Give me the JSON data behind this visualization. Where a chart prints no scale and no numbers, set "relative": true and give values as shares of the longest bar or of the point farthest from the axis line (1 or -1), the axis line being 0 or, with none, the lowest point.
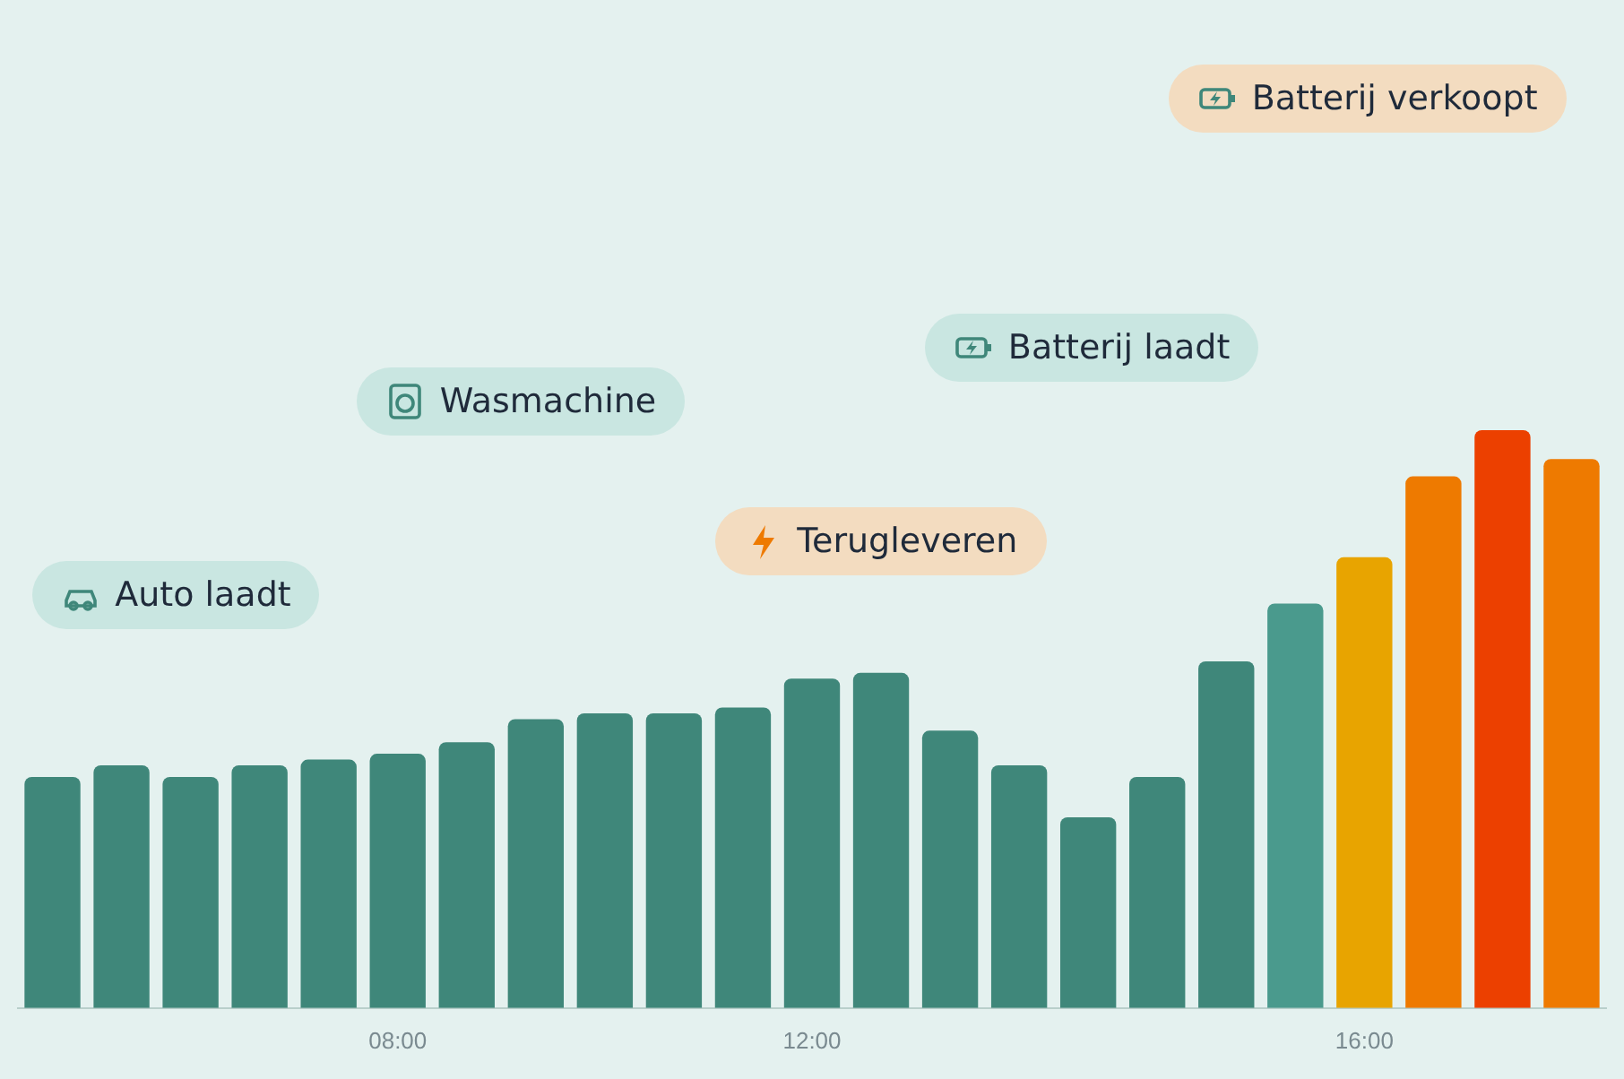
{
  "chart_data": {
    "type": "bar",
    "relative": true,
    "categories": [
      null,
      null,
      null,
      null,
      null,
      "08:00",
      null,
      null,
      null,
      null,
      null,
      "12:00",
      null,
      null,
      null,
      null,
      null,
      null,
      null,
      "16:00",
      null,
      null,
      null
    ],
    "values": [
      0.4,
      0.42,
      0.4,
      0.42,
      0.43,
      0.44,
      0.46,
      0.5,
      0.51,
      0.51,
      0.52,
      0.57,
      0.58,
      0.48,
      0.42,
      0.33,
      0.4,
      0.6,
      0.7,
      0.78,
      0.92,
      1.0,
      0.95
    ],
    "colors": [
      "#3f877a",
      "#3f877a",
      "#3f877a",
      "#3f877a",
      "#3f877a",
      "#3f877a",
      "#3f877a",
      "#3f877a",
      "#3f877a",
      "#3f877a",
      "#3f877a",
      "#3f877a",
      "#3f877a",
      "#3f877a",
      "#3f877a",
      "#3f877a",
      "#3f877a",
      "#3f877a",
      "#4a9a8d",
      "#e8a400",
      "#ee7a00",
      "#ec4000",
      "#ee7a00"
    ],
    "annotations": [
      "Auto laadt",
      "Wasmachine",
      "Terugleveren",
      "Batterij laadt",
      "Batterij verkoopt"
    ]
  }
}
